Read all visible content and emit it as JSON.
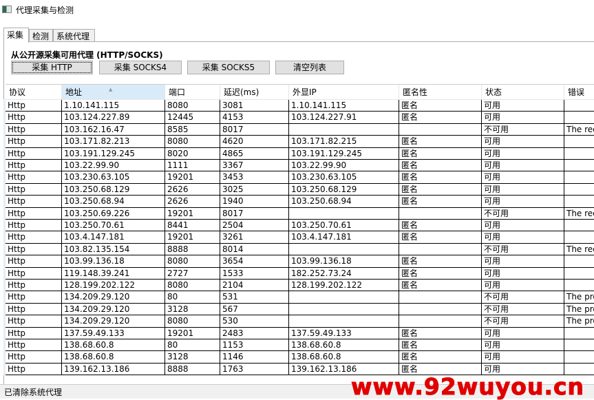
{
  "window": {
    "title": "代理采集与检测"
  },
  "tabs": [
    {
      "label": "采集",
      "active": true
    },
    {
      "label": "检测"
    },
    {
      "label": "系统代理"
    }
  ],
  "collect": {
    "heading": "从公开源采集可用代理 (HTTP/SOCKS)",
    "buttons": [
      "采集 HTTP",
      "采集 SOCKS4",
      "采集 SOCKS5",
      "清空列表"
    ]
  },
  "table": {
    "columns": [
      "协议",
      "地址",
      "端口",
      "延迟(ms)",
      "外显IP",
      "匿名性",
      "状态",
      "错误"
    ],
    "sorted_column": "地址",
    "rows": [
      [
        "Http",
        "1.10.141.115",
        "8080",
        "3081",
        "1.10.141.115",
        "匿名",
        "可用",
        ""
      ],
      [
        "Http",
        "103.124.227.89",
        "12445",
        "4153",
        "103.124.227.91",
        "匿名",
        "可用",
        ""
      ],
      [
        "Http",
        "103.162.16.47",
        "8585",
        "8017",
        "",
        "",
        "不可用",
        "The rec"
      ],
      [
        "Http",
        "103.171.82.213",
        "8080",
        "4620",
        "103.171.82.215",
        "匿名",
        "可用",
        ""
      ],
      [
        "Http",
        "103.191.129.245",
        "8020",
        "4865",
        "103.191.129.245",
        "匿名",
        "可用",
        ""
      ],
      [
        "Http",
        "103.22.99.90",
        "1111",
        "3367",
        "103.22.99.90",
        "匿名",
        "可用",
        ""
      ],
      [
        "Http",
        "103.230.63.105",
        "19201",
        "3453",
        "103.230.63.105",
        "匿名",
        "可用",
        ""
      ],
      [
        "Http",
        "103.250.68.129",
        "2626",
        "3025",
        "103.250.68.129",
        "匿名",
        "可用",
        ""
      ],
      [
        "Http",
        "103.250.68.94",
        "2626",
        "1940",
        "103.250.68.94",
        "匿名",
        "可用",
        ""
      ],
      [
        "Http",
        "103.250.69.226",
        "19201",
        "8017",
        "",
        "",
        "不可用",
        "The rec"
      ],
      [
        "Http",
        "103.250.70.61",
        "8441",
        "2504",
        "103.250.70.61",
        "匿名",
        "可用",
        ""
      ],
      [
        "Http",
        "103.4.147.181",
        "19201",
        "3261",
        "103.4.147.181",
        "匿名",
        "可用",
        ""
      ],
      [
        "Http",
        "103.82.135.154",
        "8888",
        "8014",
        "",
        "",
        "不可用",
        "The rec"
      ],
      [
        "Http",
        "103.99.136.18",
        "8080",
        "3654",
        "103.99.136.18",
        "匿名",
        "可用",
        ""
      ],
      [
        "Http",
        "119.148.39.241",
        "2727",
        "1533",
        "182.252.73.24",
        "匿名",
        "可用",
        ""
      ],
      [
        "Http",
        "128.199.202.122",
        "8080",
        "2104",
        "128.199.202.122",
        "匿名",
        "可用",
        ""
      ],
      [
        "Http",
        "134.209.29.120",
        "80",
        "531",
        "",
        "",
        "不可用",
        "The pro"
      ],
      [
        "Http",
        "134.209.29.120",
        "3128",
        "567",
        "",
        "",
        "不可用",
        "The pro"
      ],
      [
        "Http",
        "134.209.29.120",
        "8080",
        "530",
        "",
        "",
        "不可用",
        "The pro"
      ],
      [
        "Http",
        "137.59.49.133",
        "19201",
        "2483",
        "137.59.49.133",
        "匿名",
        "可用",
        ""
      ],
      [
        "Http",
        "138.68.60.8",
        "80",
        "1153",
        "138.68.60.8",
        "匿名",
        "可用",
        ""
      ],
      [
        "Http",
        "138.68.60.8",
        "3128",
        "1146",
        "138.68.60.8",
        "匿名",
        "可用",
        ""
      ],
      [
        "Http",
        "139.162.13.186",
        "8888",
        "1763",
        "139.162.13.186",
        "匿名",
        "可用",
        ""
      ]
    ]
  },
  "statusbar": {
    "text": "已清除系统代理"
  },
  "watermark": "www.92wuyou.cn"
}
